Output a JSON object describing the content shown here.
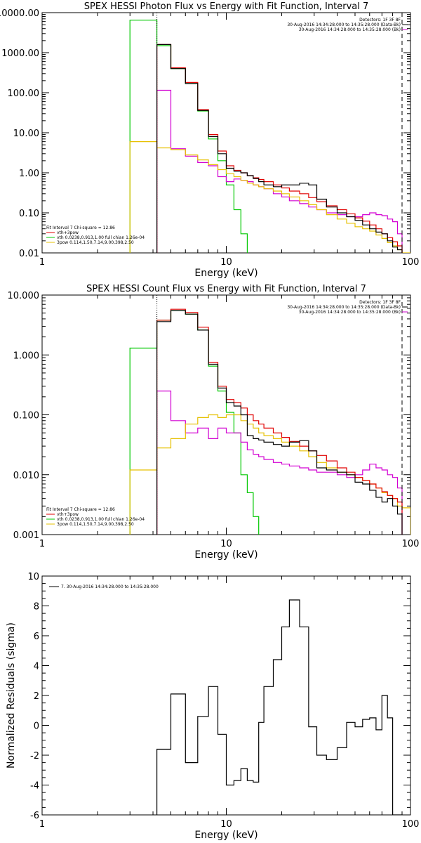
{
  "colors": {
    "black": "#000000",
    "red": "#e00000",
    "green": "#00c800",
    "magenta": "#d200d2",
    "yellow": "#e6c000"
  },
  "chart_data": [
    {
      "type": "line",
      "title": "SPEX HESSI Photon Flux vs Energy with Fit Function, Interval 7",
      "xlabel": "Energy (keV)",
      "ylabel": "",
      "xscale": "log",
      "yscale": "log",
      "xlim": [
        1,
        100
      ],
      "ylim": [
        0.01,
        10000
      ],
      "xticks": [
        {
          "v": 1,
          "t": "1"
        },
        {
          "v": 10,
          "t": "10"
        },
        {
          "v": 100,
          "t": "100"
        }
      ],
      "yticks": [
        {
          "v": 10000,
          "t": "10000.00"
        },
        {
          "v": 1000,
          "t": "1000.00"
        },
        {
          "v": 100,
          "t": "100.00"
        },
        {
          "v": 10,
          "t": "10.00"
        },
        {
          "v": 1,
          "t": "1.00"
        },
        {
          "v": 0.1,
          "t": "0.10"
        },
        {
          "v": 0.01,
          "t": "0.01"
        }
      ],
      "vlines": [
        {
          "x": 4.2,
          "style": "dotted"
        },
        {
          "x": 90,
          "style": "dashed"
        }
      ],
      "info_top_right": [
        "Detectors: 1F 3F 8F",
        "30-Aug-2016 14:34:28.000 to 14:35:28.000 (Data-Bk)",
        "30-Aug-2016 14:34:28.000 to 14:35:28.000 (Bk)"
      ],
      "info_bottom_left": [
        "Fit Interval 7   Chi-square = 12.86",
        "vth+3pow",
        "vth 0.0238,0.913,1.00   full chian 1.26e-04",
        "3pow 0.114,1.50,7.14,9.00,398,2.50"
      ],
      "series": [
        {
          "color": "green",
          "edges": [
            3,
            4.2,
            5,
            6,
            7,
            8,
            9,
            10,
            11,
            12,
            13
          ],
          "values": [
            6500,
            1500,
            400,
            170,
            35,
            7,
            2,
            0.5,
            0.12,
            0.03
          ]
        },
        {
          "color": "magenta",
          "edges": [
            4.2,
            5,
            6,
            7,
            8,
            9,
            10,
            11,
            12,
            13,
            14,
            15,
            16,
            18,
            20,
            22,
            25,
            28,
            31,
            35,
            40,
            45,
            50,
            55,
            60,
            65,
            70,
            75,
            80,
            85,
            90
          ],
          "values": [
            115,
            4,
            2.6,
            1.8,
            1.5,
            0.8,
            0.6,
            0.7,
            0.65,
            0.6,
            0.5,
            0.45,
            0.4,
            0.3,
            0.25,
            0.2,
            0.17,
            0.14,
            0.12,
            0.1,
            0.09,
            0.08,
            0.08,
            0.09,
            0.1,
            0.09,
            0.085,
            0.07,
            0.06,
            0.03
          ]
        },
        {
          "color": "yellow",
          "edges": [
            3,
            4.2,
            5,
            6,
            7,
            8,
            9,
            10,
            11,
            12,
            13,
            14,
            15,
            16,
            18,
            20,
            22,
            25,
            28,
            31,
            35,
            40,
            45,
            50,
            55,
            60,
            65,
            70,
            75,
            80,
            85,
            90,
            100
          ],
          "values": [
            6,
            4.2,
            3.8,
            2.8,
            2.1,
            1.6,
            1.2,
            0.95,
            0.8,
            0.65,
            0.55,
            0.5,
            0.45,
            0.4,
            0.35,
            0.3,
            0.25,
            0.2,
            0.16,
            0.12,
            0.09,
            0.07,
            0.055,
            0.045,
            0.04,
            0.035,
            0.028,
            0.023,
            0.018,
            0.015,
            0.012,
            0.01
          ]
        },
        {
          "color": "red",
          "edges": [
            4.2,
            5,
            6,
            7,
            8,
            9,
            10,
            11,
            12,
            13,
            14,
            15,
            16,
            18,
            20,
            22,
            25,
            28,
            31,
            35,
            40,
            45,
            50,
            55,
            60,
            65,
            70,
            75,
            80,
            85,
            90
          ],
          "values": [
            1600,
            420,
            180,
            38,
            9,
            3.5,
            1.5,
            1.15,
            1.0,
            0.85,
            0.75,
            0.68,
            0.6,
            0.5,
            0.42,
            0.35,
            0.3,
            0.24,
            0.19,
            0.15,
            0.12,
            0.095,
            0.075,
            0.062,
            0.05,
            0.04,
            0.03,
            0.024,
            0.019,
            0.015
          ]
        },
        {
          "color": "black",
          "edges": [
            4.2,
            5,
            6,
            7,
            8,
            9,
            10,
            11,
            12,
            13,
            14,
            15,
            16,
            18,
            20,
            22,
            25,
            28,
            31,
            35,
            40,
            45,
            50,
            55,
            60,
            65,
            70,
            75,
            80,
            85,
            90
          ],
          "values": [
            1600,
            400,
            170,
            36,
            8,
            3,
            1.3,
            1.1,
            1.0,
            0.85,
            0.72,
            0.6,
            0.5,
            0.45,
            0.5,
            0.5,
            0.55,
            0.5,
            0.22,
            0.14,
            0.1,
            0.08,
            0.065,
            0.05,
            0.04,
            0.033,
            0.03,
            0.02,
            0.014,
            0.012
          ]
        }
      ]
    },
    {
      "type": "line",
      "title": "SPEX HESSI Count Flux vs Energy with Fit Function, Interval 7",
      "xlabel": "Energy (keV)",
      "ylabel": "",
      "xscale": "log",
      "yscale": "log",
      "xlim": [
        1,
        100
      ],
      "ylim": [
        0.001,
        10
      ],
      "xticks": [
        {
          "v": 1,
          "t": "1"
        },
        {
          "v": 10,
          "t": "10"
        },
        {
          "v": 100,
          "t": "100"
        }
      ],
      "yticks": [
        {
          "v": 10,
          "t": "10.000"
        },
        {
          "v": 1,
          "t": "1.000"
        },
        {
          "v": 0.1,
          "t": "0.100"
        },
        {
          "v": 0.01,
          "t": "0.010"
        },
        {
          "v": 0.001,
          "t": "0.001"
        }
      ],
      "vlines": [
        {
          "x": 4.2,
          "style": "dotted"
        },
        {
          "x": 90,
          "style": "dashed"
        }
      ],
      "info_top_right": [
        "Detectors: 1F 3F 8F",
        "30-Aug-2016 14:34:28.000 to 14:35:28.000 (Data-Bk)",
        "30-Aug-2016 14:34:28.000 to 14:35:28.000 (Bk)"
      ],
      "info_bottom_left": [
        "Fit Interval 7   Chi-square = 12.86",
        "vth+3pow",
        "vth 0.0238,0.913,1.00   full chian 1.26e-04",
        "3pow 0.114,1.50,7.14,9.00,398,2.50"
      ],
      "series": [
        {
          "color": "green",
          "edges": [
            3,
            4.2,
            5,
            6,
            7,
            8,
            9,
            10,
            11,
            12,
            13,
            14,
            15
          ],
          "values": [
            1.3,
            3.8,
            5.5,
            4.8,
            2.6,
            0.65,
            0.25,
            0.11,
            0.05,
            0.01,
            0.005,
            0.002
          ]
        },
        {
          "color": "magenta",
          "edges": [
            4.2,
            5,
            6,
            7,
            8,
            9,
            10,
            11,
            12,
            13,
            14,
            15,
            16,
            18,
            20,
            22,
            25,
            28,
            31,
            35,
            40,
            45,
            50,
            55,
            60,
            65,
            70,
            75,
            80,
            85,
            90
          ],
          "values": [
            0.25,
            0.08,
            0.05,
            0.06,
            0.04,
            0.06,
            0.05,
            0.05,
            0.035,
            0.026,
            0.022,
            0.02,
            0.018,
            0.016,
            0.015,
            0.014,
            0.013,
            0.012,
            0.011,
            0.011,
            0.01,
            0.009,
            0.01,
            0.012,
            0.015,
            0.013,
            0.012,
            0.01,
            0.009,
            0.006
          ]
        },
        {
          "color": "yellow",
          "edges": [
            3,
            4.2,
            5,
            6,
            7,
            8,
            9,
            10,
            11,
            12,
            13,
            14,
            15,
            16,
            18,
            20,
            22,
            25,
            28,
            31,
            35,
            40,
            45,
            50,
            55,
            60,
            65,
            70,
            75,
            80,
            85,
            90,
            100
          ],
          "values": [
            0.012,
            0.028,
            0.04,
            0.07,
            0.09,
            0.1,
            0.09,
            0.1,
            0.1,
            0.08,
            0.07,
            0.06,
            0.05,
            0.045,
            0.04,
            0.035,
            0.03,
            0.025,
            0.02,
            0.016,
            0.013,
            0.011,
            0.01,
            0.009,
            0.008,
            0.007,
            0.006,
            0.005,
            0.0045,
            0.004,
            0.003,
            0.0028
          ]
        },
        {
          "color": "red",
          "edges": [
            4.2,
            5,
            6,
            7,
            8,
            9,
            10,
            11,
            12,
            13,
            14,
            15,
            16,
            18,
            20,
            22,
            25,
            28,
            31,
            35,
            40,
            45,
            50,
            55,
            60,
            65,
            70,
            75,
            80,
            85,
            90
          ],
          "values": [
            3.8,
            5.8,
            5.1,
            2.9,
            0.75,
            0.3,
            0.18,
            0.16,
            0.13,
            0.1,
            0.08,
            0.07,
            0.06,
            0.05,
            0.042,
            0.036,
            0.03,
            0.025,
            0.021,
            0.017,
            0.013,
            0.011,
            0.009,
            0.008,
            0.007,
            0.006,
            0.0052,
            0.0045,
            0.004,
            0.0035
          ]
        },
        {
          "color": "black",
          "edges": [
            4.2,
            5,
            6,
            7,
            8,
            9,
            10,
            11,
            12,
            13,
            14,
            15,
            16,
            18,
            20,
            22,
            25,
            28,
            31,
            35,
            40,
            45,
            50,
            55,
            60,
            65,
            70,
            75,
            80,
            85,
            90
          ],
          "values": [
            3.6,
            5.5,
            4.8,
            2.6,
            0.7,
            0.28,
            0.16,
            0.14,
            0.1,
            0.045,
            0.04,
            0.038,
            0.035,
            0.032,
            0.03,
            0.035,
            0.037,
            0.025,
            0.013,
            0.012,
            0.011,
            0.01,
            0.0075,
            0.007,
            0.0055,
            0.0042,
            0.0035,
            0.004,
            0.003,
            0.0022
          ]
        }
      ]
    },
    {
      "type": "line",
      "title": "",
      "xlabel": "Energy (keV)",
      "ylabel": "Normalized Residuals (sigma)",
      "xscale": "log",
      "yscale": "linear",
      "xlim": [
        1,
        100
      ],
      "ylim": [
        -6,
        10
      ],
      "xticks": [
        {
          "v": 1,
          "t": "1"
        },
        {
          "v": 10,
          "t": "10"
        },
        {
          "v": 100,
          "t": "100"
        }
      ],
      "yticks": [
        {
          "v": 10,
          "t": "10"
        },
        {
          "v": 8,
          "t": "8"
        },
        {
          "v": 6,
          "t": "6"
        },
        {
          "v": 4,
          "t": "4"
        },
        {
          "v": 2,
          "t": "2"
        },
        {
          "v": 0,
          "t": "0"
        },
        {
          "v": -2,
          "t": "-2"
        },
        {
          "v": -4,
          "t": "-4"
        },
        {
          "v": -6,
          "t": "-6"
        }
      ],
      "vlines": [],
      "info_top_right": [],
      "info_bottom_left": [],
      "legend": "7. 30-Aug-2016 14:34:28.000 to 14:35:28.000",
      "series": [
        {
          "name": "7. 30-Aug-2016 14:34:28.000 to 14:35:28.000",
          "color": "black",
          "edges": [
            4.2,
            5,
            6,
            7,
            8,
            9,
            10,
            11,
            12,
            13,
            14,
            15,
            16,
            18,
            20,
            22,
            25,
            28,
            31,
            35,
            40,
            45,
            50,
            55,
            60,
            65,
            70,
            75,
            80,
            85,
            90
          ],
          "values": [
            -1.6,
            2.1,
            -2.5,
            0.6,
            2.6,
            -0.6,
            -4.0,
            -3.7,
            -2.9,
            -3.7,
            -3.8,
            0.2,
            2.6,
            4.4,
            6.6,
            8.4,
            6.6,
            -0.1,
            -2.0,
            -2.3,
            -1.5,
            0.2,
            -0.1,
            0.4,
            0.5,
            -0.3,
            2.0,
            0.5,
            -6.0,
            -6.0
          ]
        }
      ]
    }
  ]
}
